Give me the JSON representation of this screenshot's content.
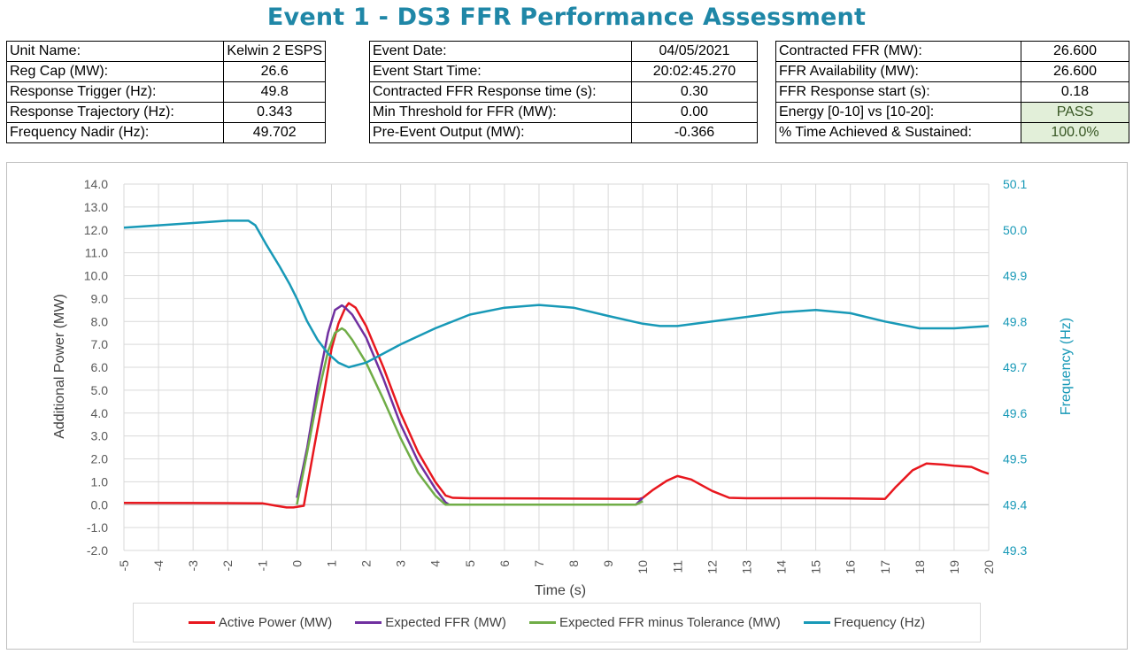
{
  "title": "Event 1 - DS3 FFR Performance Assessment",
  "info_tables": [
    [
      {
        "label": "Unit Name:",
        "value": "Kelwin 2 ESPS"
      },
      {
        "label": "Reg Cap (MW):",
        "value": "26.6"
      },
      {
        "label": "Response Trigger (Hz):",
        "value": "49.8"
      },
      {
        "label": "Response Trajectory (Hz):",
        "value": "0.343"
      },
      {
        "label": "Frequency Nadir (Hz):",
        "value": "49.702"
      }
    ],
    [
      {
        "label": "Event Date:",
        "value": "04/05/2021"
      },
      {
        "label": "Event Start Time:",
        "value": "20:02:45.270"
      },
      {
        "label": "Contracted FFR Response time (s):",
        "value": "0.30"
      },
      {
        "label": "Min Threshold for FFR (MW):",
        "value": "0.00"
      },
      {
        "label": "Pre-Event Output (MW):",
        "value": "-0.366"
      }
    ],
    [
      {
        "label": "Contracted FFR (MW):",
        "value": "26.600"
      },
      {
        "label": "FFR Availability (MW):",
        "value": "26.600"
      },
      {
        "label": "FFR Response start (s):",
        "value": "0.18"
      },
      {
        "label": "Energy [0-10] vs [10-20]:",
        "value": "PASS",
        "highlight": true
      },
      {
        "label": "% Time Achieved & Sustained:",
        "value": "100.0%",
        "highlight": true
      }
    ]
  ],
  "chart_data": {
    "type": "line",
    "xlabel": "Time (s)",
    "ylabel": "Additional Power (MW)",
    "y2label": "Frequency (Hz)",
    "xlim": [
      -5,
      20
    ],
    "ylim": [
      -2,
      14
    ],
    "y2lim": [
      49.3,
      50.1
    ],
    "x_ticks": [
      -5,
      -4,
      -3,
      -2,
      -1,
      0,
      1,
      2,
      3,
      4,
      5,
      6,
      7,
      8,
      9,
      10,
      11,
      12,
      13,
      14,
      15,
      16,
      17,
      18,
      19,
      20
    ],
    "y_ticks": [
      -2,
      -1,
      0,
      1,
      2,
      3,
      4,
      5,
      6,
      7,
      8,
      9,
      10,
      11,
      12,
      13,
      14
    ],
    "y2_ticks": [
      49.3,
      49.4,
      49.5,
      49.6,
      49.7,
      49.8,
      49.9,
      50.0,
      50.1
    ],
    "grid": true,
    "legend_position": "bottom",
    "series": [
      {
        "name": "Active Power (MW)",
        "axis": "left",
        "color": "#e8171e",
        "x": [
          -5,
          -3,
          -1,
          -0.6,
          -0.3,
          -0.1,
          0.2,
          0.5,
          0.8,
          1.0,
          1.2,
          1.4,
          1.5,
          1.7,
          2.0,
          2.5,
          3.0,
          3.5,
          4.0,
          4.3,
          4.5,
          5,
          7,
          9.9,
          10,
          10.3,
          10.7,
          11.0,
          11.4,
          12,
          12.5,
          13,
          15,
          16,
          17,
          17.3,
          17.8,
          18.2,
          18.7,
          19,
          19.5,
          19.8,
          20
        ],
        "y": [
          0.08,
          0.07,
          0.06,
          -0.05,
          -0.12,
          -0.12,
          -0.05,
          2.5,
          5.0,
          6.8,
          7.9,
          8.6,
          8.8,
          8.6,
          7.8,
          6.0,
          4.0,
          2.3,
          1.0,
          0.4,
          0.3,
          0.28,
          0.27,
          0.25,
          0.3,
          0.65,
          1.05,
          1.25,
          1.1,
          0.6,
          0.3,
          0.28,
          0.28,
          0.27,
          0.25,
          0.75,
          1.5,
          1.8,
          1.75,
          1.7,
          1.65,
          1.45,
          1.35
        ]
      },
      {
        "name": "Expected FFR (MW)",
        "axis": "left",
        "color": "#7030a0",
        "x": [
          0,
          0.3,
          0.6,
          0.9,
          1.1,
          1.3,
          1.4,
          1.6,
          2.0,
          2.5,
          3.0,
          3.5,
          4.0,
          4.3,
          4.4,
          9.8,
          10.0
        ],
        "y": [
          0.3,
          2.5,
          5.2,
          7.5,
          8.5,
          8.7,
          8.6,
          8.3,
          7.3,
          5.5,
          3.5,
          1.9,
          0.7,
          0.1,
          0.0,
          0.0,
          0.3
        ]
      },
      {
        "name": "Expected FFR minus Tolerance (MW)",
        "axis": "left",
        "color": "#70ad47",
        "x": [
          0,
          0.3,
          0.6,
          0.9,
          1.1,
          1.3,
          1.4,
          1.6,
          2.0,
          2.5,
          3.0,
          3.5,
          4.0,
          4.3,
          4.4,
          9.8,
          10.0
        ],
        "y": [
          0.0,
          2.3,
          4.7,
          6.7,
          7.5,
          7.7,
          7.6,
          7.2,
          6.2,
          4.6,
          2.9,
          1.4,
          0.4,
          0.0,
          0.0,
          0.0,
          0.15
        ]
      },
      {
        "name": "Frequency (Hz)",
        "axis": "right",
        "color": "#1899b7",
        "x": [
          -5,
          -4,
          -3,
          -2,
          -1.4,
          -1.2,
          -0.9,
          -0.5,
          -0.2,
          0,
          0.3,
          0.6,
          0.9,
          1.2,
          1.5,
          2.0,
          2.5,
          3.0,
          4.0,
          5.0,
          6.0,
          7.0,
          8.0,
          9.0,
          10.0,
          10.5,
          11.0,
          12.0,
          13.0,
          14.0,
          15.0,
          16.0,
          17.0,
          18.0,
          19.0,
          20.0
        ],
        "y": [
          50.005,
          50.01,
          50.015,
          50.02,
          50.02,
          50.01,
          49.97,
          49.92,
          49.88,
          49.85,
          49.8,
          49.76,
          49.73,
          49.71,
          49.7,
          49.71,
          49.73,
          49.75,
          49.785,
          49.815,
          49.83,
          49.836,
          49.83,
          49.812,
          49.795,
          49.79,
          49.79,
          49.8,
          49.81,
          49.82,
          49.825,
          49.818,
          49.8,
          49.785,
          49.785,
          49.79
        ]
      }
    ]
  }
}
